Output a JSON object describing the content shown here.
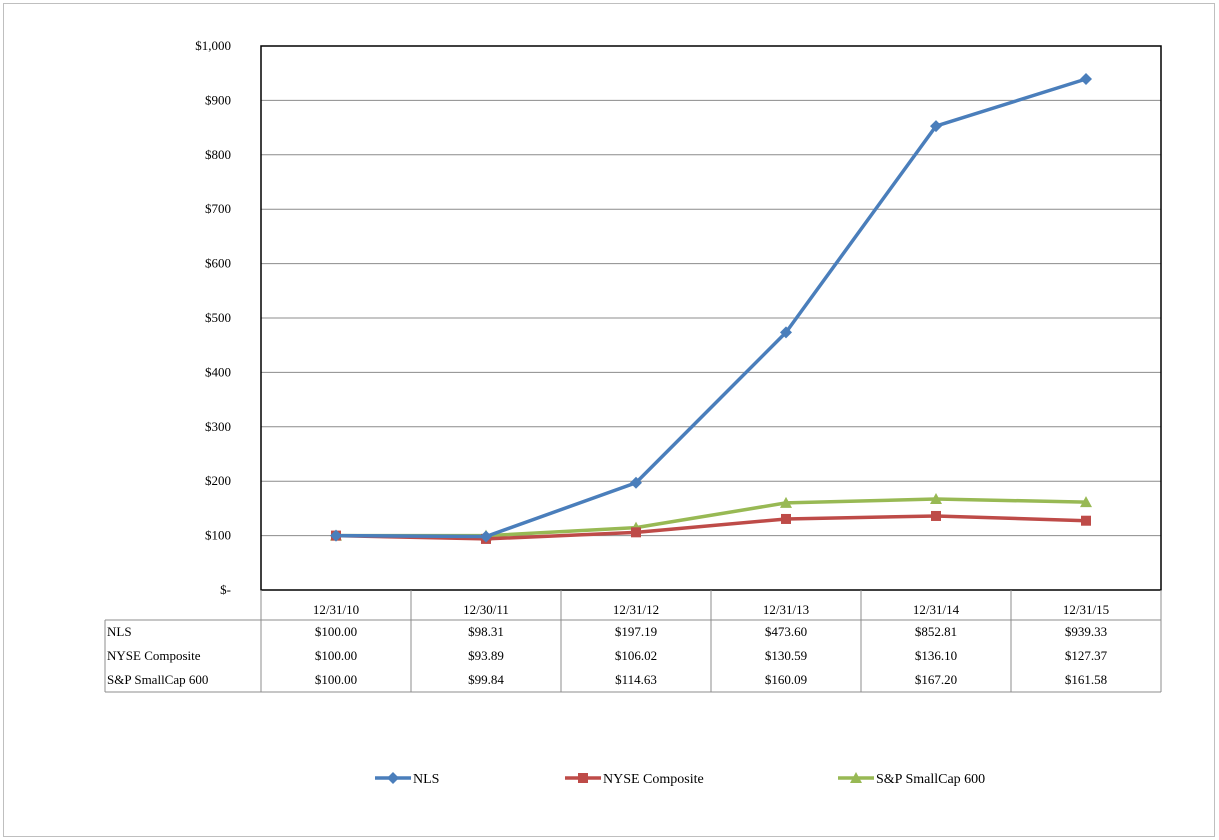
{
  "chart_data": {
    "type": "line",
    "categories": [
      "12/31/10",
      "12/30/11",
      "12/31/12",
      "12/31/13",
      "12/31/14",
      "12/31/15"
    ],
    "y_tick_labels": [
      "$-",
      "$100",
      "$200",
      "$300",
      "$400",
      "$500",
      "$600",
      "$700",
      "$800",
      "$900",
      "$1,000"
    ],
    "ylim": [
      0,
      1000
    ],
    "grid": true,
    "legend_position": "bottom",
    "series": [
      {
        "name": "NLS",
        "color": "#4a7ebb",
        "marker": "diamond",
        "values": [
          100.0,
          98.31,
          197.19,
          473.6,
          852.81,
          939.33
        ],
        "labels": [
          "$100.00",
          "$98.31",
          "$197.19",
          "$473.60",
          "$852.81",
          "$939.33"
        ]
      },
      {
        "name": "NYSE Composite",
        "color": "#be4b48",
        "marker": "square",
        "values": [
          100.0,
          93.89,
          106.02,
          130.59,
          136.1,
          127.37
        ],
        "labels": [
          "$100.00",
          "$93.89",
          "$106.02",
          "$130.59",
          "$136.10",
          "$127.37"
        ]
      },
      {
        "name": "S&P SmallCap 600",
        "color": "#98b954",
        "marker": "triangle",
        "values": [
          100.0,
          99.84,
          114.63,
          160.09,
          167.2,
          161.58
        ],
        "labels": [
          "$100.00",
          "$99.84",
          "$114.63",
          "$160.09",
          "$167.20",
          "$161.58"
        ]
      }
    ]
  }
}
